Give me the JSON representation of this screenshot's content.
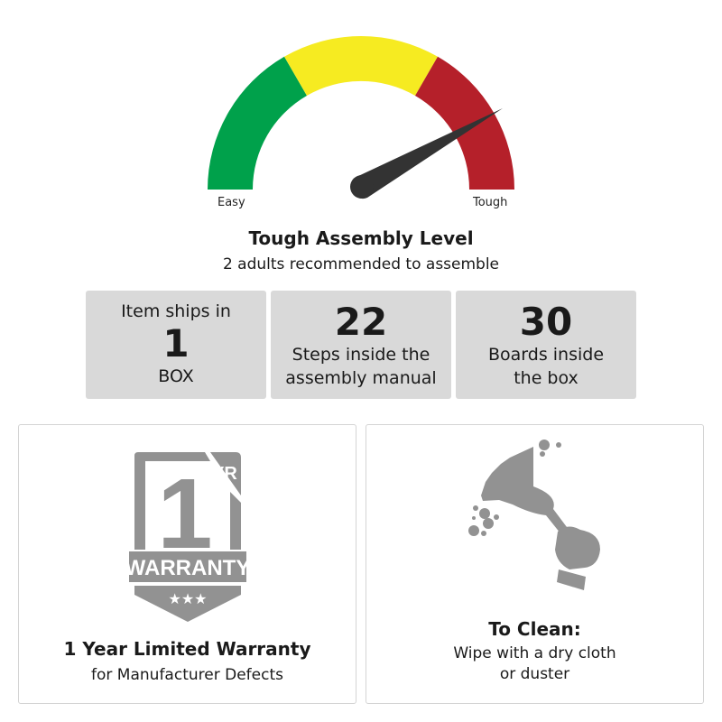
{
  "gauge": {
    "min_label": "Easy",
    "max_label": "Tough",
    "level_fraction": 0.83,
    "colors": {
      "easy": "#00a14b",
      "medium": "#f6eb21",
      "tough": "#b5202a",
      "needle": "#333333"
    }
  },
  "assembly": {
    "title": "Tough Assembly Level",
    "subtitle": "2 adults recommended to assemble"
  },
  "stats": [
    {
      "top": "Item ships in",
      "value": "1",
      "bottom": "BOX"
    },
    {
      "value": "22",
      "line1": "Steps inside the",
      "line2": "assembly manual"
    },
    {
      "value": "30",
      "line1": "Boards inside",
      "line2": "the box"
    }
  ],
  "warranty": {
    "badge_number": "1",
    "badge_unit": "YR",
    "badge_text": "WARRANTY",
    "badge_stars": "★★★",
    "title": "1 Year Limited Warranty",
    "subtitle": "for Manufacturer Defects"
  },
  "cleaning": {
    "icon": "feather-duster-icon",
    "title": "To Clean:",
    "line1": "Wipe with a dry cloth",
    "line2": "or duster"
  }
}
